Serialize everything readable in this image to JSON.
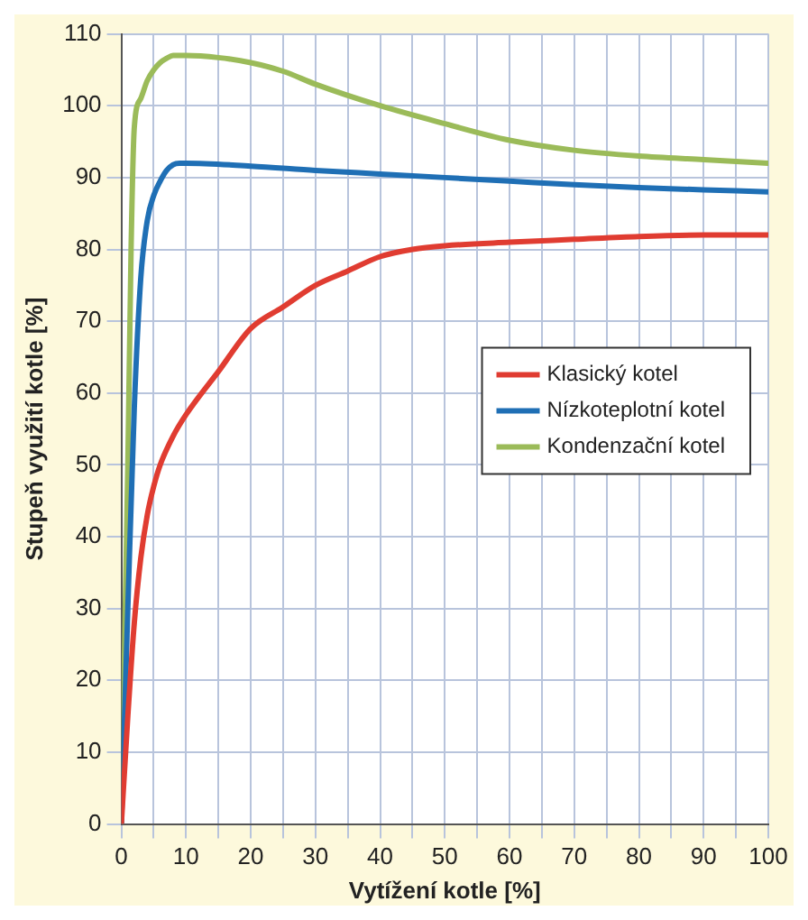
{
  "chart_data": {
    "type": "line",
    "xlabel": "Vytížení kotle [%]",
    "ylabel": "Stupeň využití kotle [%]",
    "xlim": [
      0,
      100
    ],
    "xticks": [
      0,
      {
        "value": 5,
        "label": null
      },
      10,
      {
        "value": 15,
        "label": null
      },
      20,
      {
        "value": 25,
        "label": null
      },
      30,
      {
        "value": 35,
        "label": null
      },
      40,
      {
        "value": 45,
        "label": null
      },
      50,
      {
        "value": 55,
        "label": null
      },
      60,
      {
        "value": 65,
        "label": null
      },
      70,
      {
        "value": 75,
        "label": null
      },
      80,
      {
        "value": 85,
        "label": null
      },
      90,
      {
        "value": 95,
        "label": null
      },
      100
    ],
    "ylim": [
      0,
      110
    ],
    "yticks": [
      0,
      10,
      20,
      30,
      40,
      50,
      60,
      70,
      80,
      90,
      100,
      110
    ],
    "grid": true,
    "legend": "right",
    "marker": "none",
    "line_style": "solid",
    "series": [
      {
        "name": "Klasický kotel",
        "color": "#e03c31",
        "x": [
          0,
          1,
          2,
          3,
          4,
          5,
          6,
          8,
          10,
          15,
          20,
          25,
          30,
          35,
          40,
          45,
          50,
          60,
          70,
          80,
          90,
          100
        ],
        "values": [
          0,
          15,
          28,
          37,
          43,
          47,
          50,
          54,
          57,
          63,
          69,
          72,
          75,
          77,
          79,
          80,
          80.5,
          81,
          81.4,
          81.8,
          82,
          82
        ]
      },
      {
        "name": "Nízkoteplotní kotel",
        "color": "#1f6fb5",
        "x": [
          0,
          1,
          2,
          3,
          4,
          5,
          6,
          7,
          8,
          9,
          10,
          20,
          30,
          40,
          50,
          60,
          70,
          80,
          90,
          100
        ],
        "values": [
          0,
          30,
          58,
          76,
          84,
          87.5,
          89.5,
          91,
          91.8,
          92,
          92,
          91.6,
          91,
          90.5,
          90,
          89.5,
          89,
          88.6,
          88.3,
          88
        ]
      },
      {
        "name": "Kondenzační kotel",
        "color": "#9bbb59",
        "x": [
          0,
          1,
          1.5,
          2,
          3,
          4,
          5,
          6,
          7,
          8,
          10,
          15,
          20,
          25,
          30,
          40,
          50,
          60,
          70,
          80,
          90,
          100
        ],
        "values": [
          0,
          50,
          80,
          97,
          101,
          103.5,
          105,
          106,
          106.6,
          107,
          107,
          106.7,
          106,
          104.8,
          103,
          100,
          97.5,
          95.2,
          93.8,
          93,
          92.5,
          92
        ]
      }
    ]
  }
}
